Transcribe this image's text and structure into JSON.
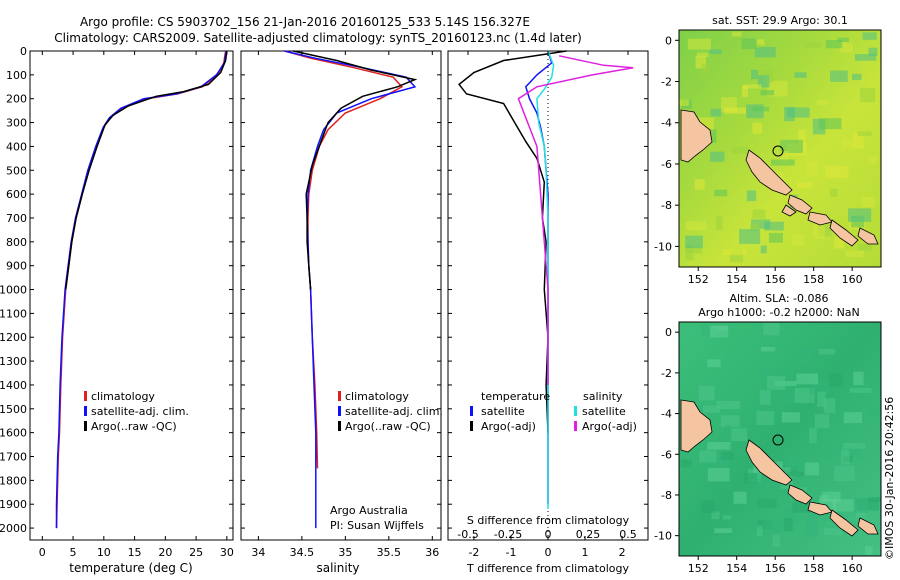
{
  "header": {
    "title_line1": "Argo profile: CS 5903702_156 21-Jan-2016 20160125_533 5.14S 156.327E",
    "title_line2": "Climatology: CARS2009. Satellite-adjusted climatology: synTS_20160123.nc (1.4d later)"
  },
  "watermark": "©IMOS 30-Jan-2016 20:42:56",
  "colors": {
    "climatology": "#e02020",
    "satellite": "#1010ff",
    "argo": "#000000",
    "sat_salinity": "#20e0e0",
    "argo_salinity": "#e020e0"
  },
  "chart_data": [
    {
      "type": "line",
      "id": "temperature",
      "xlabel": "temperature (deg C)",
      "xlim": [
        -2,
        31
      ],
      "ylim": [
        2050,
        0
      ],
      "xticks": [
        0,
        5,
        10,
        15,
        20,
        25,
        30
      ],
      "yticks": [
        0,
        100,
        200,
        300,
        400,
        500,
        600,
        700,
        800,
        900,
        1000,
        1100,
        1200,
        1300,
        1400,
        1500,
        1600,
        1700,
        1800,
        1900,
        2000
      ],
      "legend": [
        "climatology",
        "satellite-adj. clim.",
        "Argo(..raw -QC)"
      ],
      "series": [
        {
          "name": "climatology",
          "color": "#e02020",
          "x": [
            29.8,
            29.5,
            28.5,
            26.0,
            22.0,
            17.0,
            13.0,
            11.0,
            10.0,
            8.8,
            7.5,
            6.5,
            5.5,
            4.8,
            4.3,
            3.8,
            3.3,
            3.0,
            2.8,
            2.6,
            2.5,
            2.4,
            2.3
          ],
          "y": [
            0,
            50,
            100,
            150,
            180,
            200,
            240,
            280,
            320,
            400,
            500,
            600,
            700,
            800,
            900,
            1000,
            1200,
            1400,
            1600,
            1700,
            1800,
            1900,
            2000
          ]
        },
        {
          "name": "satellite-adj. clim.",
          "color": "#1010ff",
          "x": [
            29.9,
            29.6,
            28.3,
            25.8,
            21.8,
            16.5,
            12.8,
            10.9,
            9.9,
            8.7,
            7.4,
            6.4,
            5.4,
            4.7,
            4.2,
            3.7,
            3.2,
            2.9,
            2.7,
            2.5,
            2.4,
            2.3,
            2.3
          ],
          "y": [
            0,
            50,
            100,
            150,
            180,
            200,
            240,
            280,
            320,
            400,
            500,
            600,
            700,
            800,
            900,
            1000,
            1200,
            1400,
            1600,
            1700,
            1800,
            1900,
            2000
          ]
        },
        {
          "name": "Argo(..raw -QC)",
          "color": "#000000",
          "x": [
            30.0,
            29.8,
            29.0,
            27.0,
            23.0,
            18.5,
            14.0,
            11.5,
            10.2,
            8.9,
            7.6,
            6.5,
            5.5,
            4.8,
            4.3,
            3.8
          ],
          "y": [
            0,
            40,
            90,
            140,
            170,
            190,
            230,
            270,
            310,
            400,
            500,
            600,
            700,
            800,
            900,
            1000
          ]
        }
      ]
    },
    {
      "type": "line",
      "id": "salinity",
      "xlabel": "salinity",
      "xlim": [
        33.8,
        36.1
      ],
      "ylim": [
        2050,
        0
      ],
      "xticks": [
        34,
        34.5,
        35,
        35.5,
        36
      ],
      "legend": [
        "climatology",
        "satellite-adj. clim.",
        "Argo(..raw -QC)"
      ],
      "annotations": [
        "Argo Australia",
        "PI: Susan Wijffels"
      ],
      "series": [
        {
          "name": "climatology",
          "color": "#e02020",
          "x": [
            34.3,
            34.6,
            35.1,
            35.55,
            35.65,
            35.4,
            35.0,
            34.8,
            34.7,
            34.62,
            34.58,
            34.57,
            34.57,
            34.58,
            34.6,
            34.62,
            34.65,
            34.67,
            34.68
          ],
          "y": [
            0,
            30,
            70,
            110,
            150,
            200,
            260,
            330,
            400,
            500,
            600,
            700,
            800,
            900,
            1000,
            1200,
            1400,
            1600,
            1750
          ]
        },
        {
          "name": "satellite-adj. clim.",
          "color": "#1010ff",
          "x": [
            34.3,
            34.65,
            35.2,
            35.7,
            35.8,
            35.3,
            34.9,
            34.75,
            34.68,
            34.6,
            34.57,
            34.56,
            34.57,
            34.58,
            34.6,
            34.62,
            34.64,
            34.66,
            34.66
          ],
          "y": [
            0,
            30,
            70,
            110,
            150,
            200,
            260,
            330,
            400,
            500,
            600,
            700,
            800,
            900,
            1000,
            1200,
            1400,
            1600,
            2000
          ]
        },
        {
          "name": "Argo(..raw -QC)",
          "color": "#000000",
          "x": [
            34.4,
            34.9,
            35.3,
            35.8,
            35.6,
            35.2,
            34.95,
            34.8,
            34.72,
            34.62,
            34.55,
            34.56,
            34.56,
            34.58,
            34.6
          ],
          "y": [
            0,
            40,
            80,
            120,
            150,
            190,
            240,
            300,
            380,
            480,
            600,
            700,
            800,
            900,
            1000
          ]
        }
      ]
    },
    {
      "type": "line",
      "id": "differences",
      "xlabel_bottom": "T difference from climatology",
      "xlabel_top": "S difference from climatology",
      "xlim_T": [
        -2.7,
        2.7
      ],
      "xticks_T": [
        -2,
        -1,
        0,
        1,
        2
      ],
      "xticks_S": [
        -0.5,
        -0.25,
        0,
        0.25,
        0.5
      ],
      "legend": {
        "temperature_title": "temperature",
        "salinity_title": "salinity",
        "items": [
          "satellite",
          "Argo(-adj)",
          "satellite",
          "Argo(-adj)"
        ]
      },
      "series": [
        {
          "name": "satellite",
          "quantity": "temperature",
          "color": "#1010ff",
          "x": [
            0,
            0.1,
            -0.3,
            -0.6,
            -0.5,
            -0.3,
            -0.2,
            -0.1,
            -0.05,
            0,
            0,
            0,
            0,
            0
          ],
          "y": [
            0,
            50,
            100,
            150,
            200,
            260,
            320,
            400,
            500,
            600,
            800,
            1200,
            1600,
            1900
          ]
        },
        {
          "name": "Argo(-adj)",
          "quantity": "temperature",
          "color": "#000000",
          "x": [
            0.5,
            -1.2,
            -2.0,
            -2.4,
            -2.2,
            -1.2,
            -0.9,
            -0.6,
            -0.3,
            -0.1,
            -0.15,
            -0.05,
            -0.1,
            0,
            -0.05,
            0
          ],
          "y": [
            0,
            40,
            90,
            140,
            180,
            220,
            300,
            380,
            450,
            550,
            700,
            800,
            1000,
            1200,
            1400,
            1600
          ]
        },
        {
          "name": "satellite",
          "quantity": "salinity",
          "color": "#20e0e0",
          "x": [
            0,
            0.15,
            0.1,
            -0.1,
            -0.3,
            -0.25,
            -0.1,
            -0.05,
            0,
            0,
            0,
            0,
            0
          ],
          "y": [
            0,
            60,
            110,
            160,
            200,
            300,
            400,
            500,
            700,
            1000,
            1400,
            1700,
            1920
          ]
        },
        {
          "name": "Argo(-adj)",
          "quantity": "salinity",
          "color": "#e020e0",
          "x": [
            0.3,
            1.5,
            2.3,
            1.2,
            -0.3,
            -0.8,
            -0.3,
            -0.2,
            -0.1,
            0,
            0,
            0
          ],
          "y": [
            20,
            60,
            70,
            100,
            150,
            200,
            400,
            600,
            800,
            1000,
            1200,
            1400
          ]
        }
      ]
    },
    {
      "type": "heatmap",
      "id": "sst-map",
      "title": "sat. SST: 29.9 Argo: 30.1",
      "xlim": [
        151,
        161.5
      ],
      "ylim": [
        -11,
        0.5
      ],
      "xticks": [
        152,
        154,
        156,
        158,
        160
      ],
      "yticks": [
        0,
        -2,
        -4,
        -6,
        -8,
        -10
      ],
      "argo_position": {
        "lon": 156.3,
        "lat": -5.14
      }
    },
    {
      "type": "heatmap",
      "id": "sla-map",
      "title_line1": "Altim. SLA: -0.086",
      "title_line2": "Argo h1000: -0.2 h2000: NaN",
      "xlim": [
        151,
        161.5
      ],
      "ylim": [
        -11,
        0.5
      ],
      "xticks": [
        152,
        154,
        156,
        158,
        160
      ],
      "yticks": [
        0,
        -2,
        -4,
        -6,
        -8,
        -10
      ],
      "argo_position": {
        "lon": 156.3,
        "lat": -5.14
      }
    }
  ]
}
